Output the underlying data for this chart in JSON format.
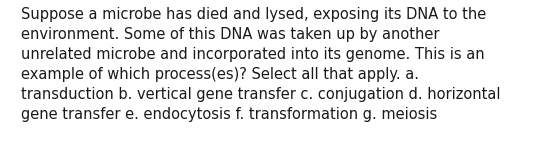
{
  "lines": [
    "Suppose a microbe has died and lysed, exposing its DNA to the",
    "environment. Some of this DNA was taken up by another",
    "unrelated microbe and incorporated into its genome. This is an",
    "example of which process(es)? Select all that apply. a.",
    "transduction b. vertical gene transfer c. conjugation d. horizontal",
    "gene transfer e. endocytosis f. transformation g. meiosis"
  ],
  "background_color": "#ffffff",
  "text_color": "#1a1a1a",
  "font_size": 10.5,
  "font_family": "DejaVu Sans",
  "fig_width": 5.58,
  "fig_height": 1.67,
  "dpi": 100
}
